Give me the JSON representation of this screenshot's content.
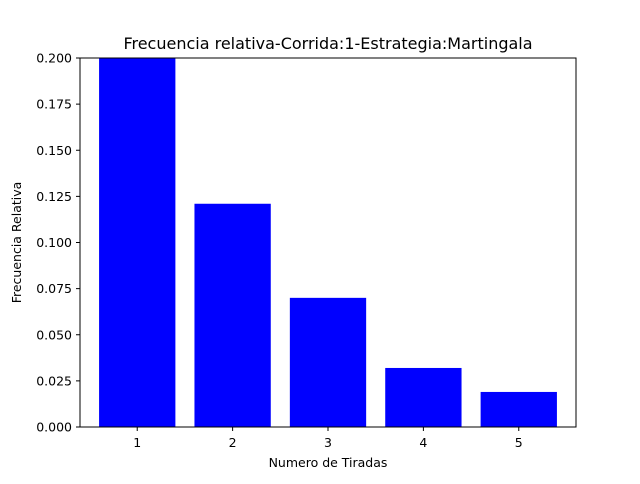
{
  "chart_data": {
    "type": "bar",
    "title": "Frecuencia relativa-Corrida:1-Estrategia:Martingala",
    "xlabel": "Numero de Tiradas",
    "ylabel": "Frecuencia Relativa",
    "categories": [
      "1",
      "2",
      "3",
      "4",
      "5"
    ],
    "values": [
      0.2,
      0.121,
      0.07,
      0.032,
      0.019
    ],
    "ylim": [
      0,
      0.2
    ],
    "yticks": [
      "0.000",
      "0.025",
      "0.050",
      "0.075",
      "0.100",
      "0.125",
      "0.150",
      "0.175",
      "0.200"
    ],
    "bar_color": "#0000ff",
    "grid": false,
    "legend": "none"
  }
}
